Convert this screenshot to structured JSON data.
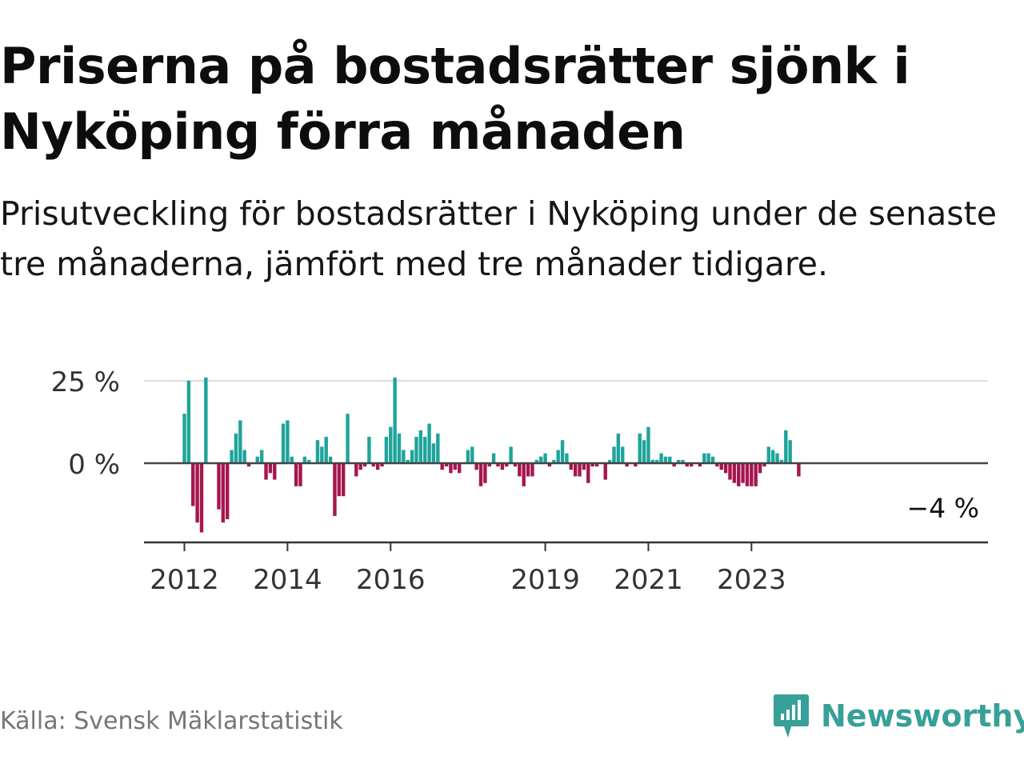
{
  "title": "Priserna på bostadsrätter sjönk i Nyköping förra månaden",
  "subtitle": "Prisutveckling för bostadsrätter i Nyköping under de senaste tre månaderna, jämfört med tre månader tidigare.",
  "source": "Källa: Svensk Mäklarstatistik",
  "brand": "Newsworthy",
  "colors": {
    "positive": "#1ea49a",
    "negative": "#a5164e",
    "brand": "#37a098",
    "grid": "#dddddd",
    "axis": "#444444"
  },
  "chart_data": {
    "type": "bar",
    "ylim": [
      -23,
      25
    ],
    "y_ticks": [
      0,
      25
    ],
    "y_tick_labels": [
      "0 %",
      "25 %"
    ],
    "grid": true,
    "x_tick_years": [
      2012,
      2014,
      2016,
      2019,
      2021,
      2023
    ],
    "x_tick_labels": [
      "2012",
      "2014",
      "2016",
      "2019",
      "2021",
      "2023"
    ],
    "last_value_label": "−4 %",
    "start": "2012-01",
    "series": [
      {
        "values": [
          15,
          25,
          -13,
          -18,
          -21,
          26,
          0,
          0,
          -14,
          -18,
          -17,
          4,
          9,
          13,
          4,
          -1,
          0,
          2,
          4,
          -5,
          -3,
          -5,
          0,
          12,
          13,
          2,
          -7,
          -7,
          2,
          1,
          0,
          7,
          5,
          8,
          2,
          -16,
          -10,
          -10,
          15,
          0,
          -4,
          -2,
          -1,
          8,
          -1,
          -2,
          -1,
          8,
          11,
          26,
          9,
          4,
          1,
          4,
          8,
          10,
          8,
          12,
          6,
          9,
          -2,
          -1,
          -3,
          -2,
          -3,
          0,
          4,
          5,
          -2,
          -7,
          -6,
          -1,
          3,
          -1,
          -2,
          -1,
          5,
          -1,
          -4,
          -7,
          -4,
          -4,
          1,
          2,
          3,
          -1,
          1,
          4,
          7,
          3,
          -2,
          -4,
          -4,
          -2,
          -6,
          -1,
          -1,
          0,
          -5,
          1,
          5,
          9,
          5,
          -1,
          0,
          -1,
          9,
          7,
          11,
          1,
          1,
          3,
          2,
          2,
          -1,
          1,
          1,
          -1,
          -1,
          0,
          -1,
          3,
          3,
          2,
          -1,
          -2,
          -3,
          -5,
          -6,
          -7,
          -6,
          -7,
          -7,
          -7,
          -3,
          -1,
          5,
          4,
          3,
          1,
          10,
          7,
          0,
          -4
        ]
      }
    ]
  }
}
